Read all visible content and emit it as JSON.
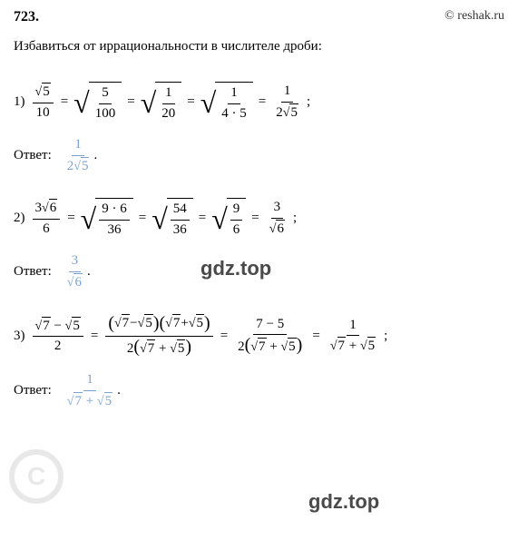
{
  "header": {
    "problem_number": "723.",
    "site": "© reshak.ru"
  },
  "instruction": "Избавиться от иррациональности в числителе дроби:",
  "watermark": "gdz.top",
  "answer_label": "Ответ:",
  "punct": {
    "eq": "=",
    "semi": ";",
    "dot": "."
  },
  "items": [
    {
      "num": "1)",
      "steps": {
        "s1_num": "5",
        "s1_den": "10",
        "s2_num": "5",
        "s2_den": "100",
        "s3_num": "1",
        "s3_den": "20",
        "s4_num": "1",
        "s4_den": "4 · 5",
        "s5_num": "1",
        "s5_den_a": "2",
        "s5_den_b": "5"
      },
      "answer": {
        "num": "1",
        "den_a": "2",
        "den_b": "5"
      }
    },
    {
      "num": "2)",
      "steps": {
        "s1_a": "3",
        "s1_b": "6",
        "s1_den": "6",
        "s2_num": "9 · 6",
        "s2_den": "36",
        "s3_num": "54",
        "s3_den": "36",
        "s4_num": "9",
        "s4_den": "6",
        "s5_num": "3",
        "s5_den": "6"
      },
      "answer": {
        "num": "3",
        "den": "6"
      }
    },
    {
      "num": "3)",
      "steps": {
        "s1_a": "7",
        "s1_b": "5",
        "s1_den": "2",
        "s2_a": "7",
        "s2_b": "5",
        "s2_c": "7",
        "s2_d": "5",
        "s2_den_a": "2",
        "s2_den_b": "7",
        "s2_den_c": "5",
        "s3_num": "7 − 5",
        "s3_den_a": "2",
        "s3_den_b": "7",
        "s3_den_c": "5",
        "s4_num": "1",
        "s4_den_a": "7",
        "s4_den_b": "5"
      },
      "answer": {
        "num": "1",
        "den_a": "7",
        "den_b": "5"
      }
    }
  ]
}
